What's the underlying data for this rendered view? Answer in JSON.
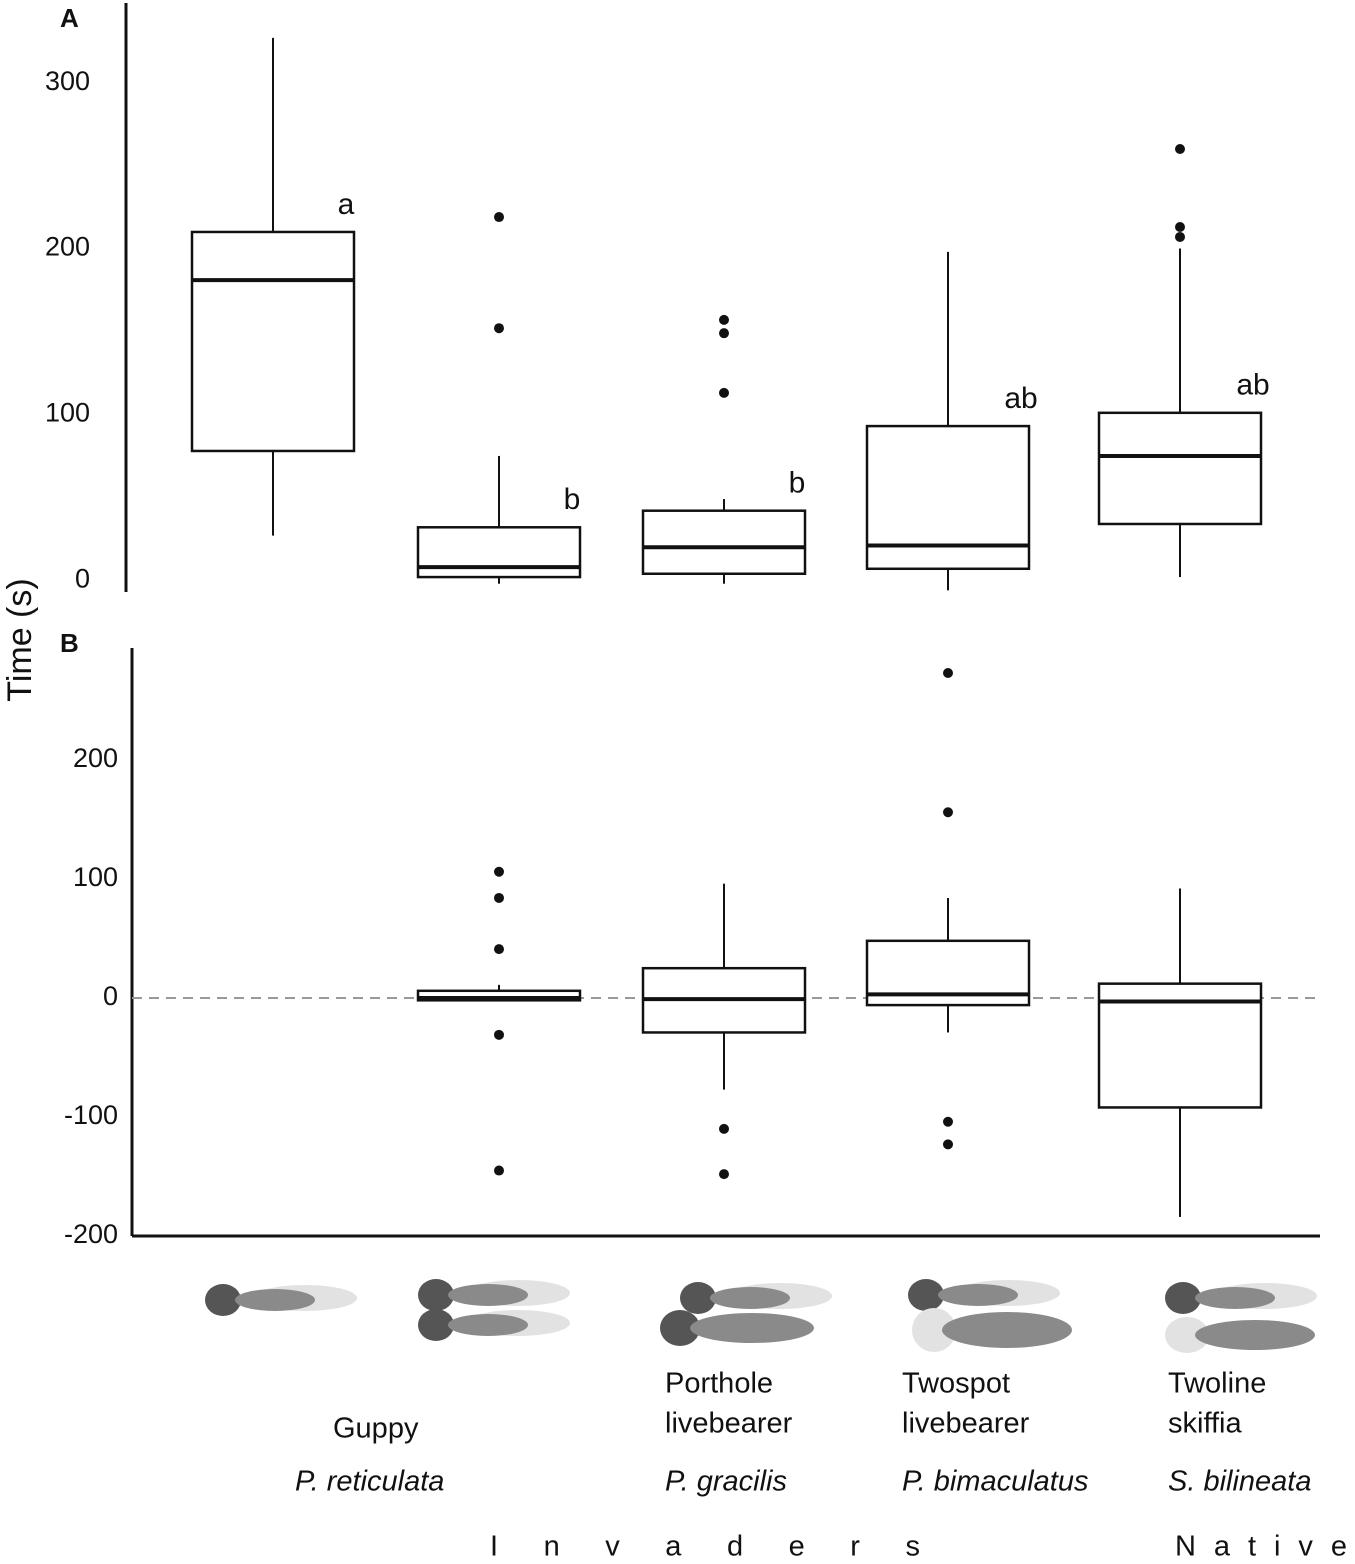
{
  "ylabel": "Time (s)",
  "categories": {
    "common": [
      [
        "Guppy"
      ],
      null,
      [
        "Porthole",
        "livebearer"
      ],
      [
        "Twospot",
        "livebearer"
      ],
      [
        "Twoline",
        "skiffia"
      ]
    ],
    "scientific": [
      "P. reticulata",
      null,
      "P. gracilis",
      "P. bimaculatus",
      "S. bilineata"
    ]
  },
  "groups": [
    {
      "label": "Invaders"
    },
    {
      "label": "Native"
    }
  ],
  "chart_data": [
    {
      "type": "box",
      "panel": "A",
      "ylim": [
        -7,
        348
      ],
      "yticks": [
        0,
        100,
        200,
        300
      ],
      "boxes": [
        {
          "whisker_low": 27,
          "q1": 78,
          "median": 181,
          "q3": 210,
          "whisker_high": 327,
          "outliers": [],
          "letter": "a"
        },
        {
          "whisker_low": -2,
          "q1": 2,
          "median": 8,
          "q3": 32,
          "whisker_high": 75,
          "outliers": [
            219,
            152
          ],
          "letter": "b"
        },
        {
          "whisker_low": -2,
          "q1": 4,
          "median": 20,
          "q3": 42,
          "whisker_high": 49,
          "outliers": [
            157,
            149,
            113
          ],
          "letter": "b"
        },
        {
          "whisker_low": -6,
          "q1": 7,
          "median": 21,
          "q3": 93,
          "whisker_high": 198,
          "outliers": [],
          "letter": "ab"
        },
        {
          "whisker_low": 2,
          "q1": 34,
          "median": 75,
          "q3": 101,
          "whisker_high": 200,
          "outliers": [
            260,
            213,
            207
          ],
          "letter": "ab"
        }
      ]
    },
    {
      "type": "box",
      "panel": "B",
      "ylim": [
        -200,
        294
      ],
      "yticks": [
        -200,
        -100,
        0,
        100,
        200
      ],
      "hline": 0,
      "boxes": [
        null,
        {
          "whisker_low": -2,
          "q1": -2,
          "median": 0,
          "q3": 6,
          "whisker_high": 11,
          "outliers": [
            106,
            84,
            41,
            -31,
            -145
          ]
        },
        {
          "whisker_low": -77,
          "q1": -29,
          "median": -1,
          "q3": 25,
          "whisker_high": 96,
          "outliers": [
            -110,
            -148
          ]
        },
        {
          "whisker_low": -29,
          "q1": -6,
          "median": 3,
          "q3": 48,
          "whisker_high": 84,
          "outliers": [
            273,
            156,
            -104,
            -123
          ]
        },
        {
          "whisker_low": -184,
          "q1": -92,
          "median": -3,
          "q3": 12,
          "whisker_high": 92,
          "outliers": []
        }
      ]
    }
  ]
}
